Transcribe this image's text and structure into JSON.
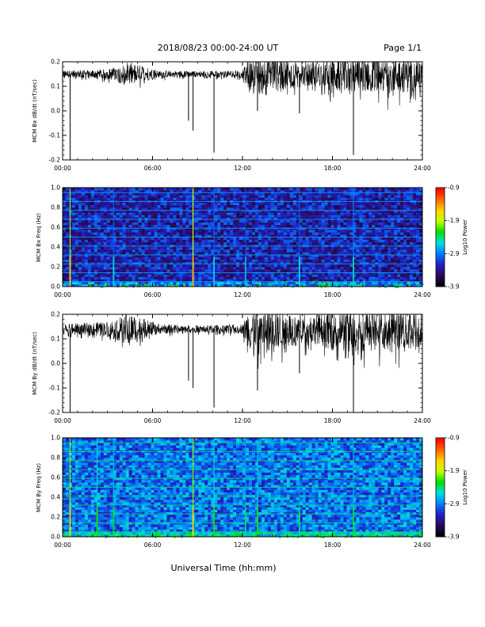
{
  "header": {
    "title": "2018/08/23  00:00-24:00 UT",
    "page": "Page 1/1"
  },
  "xlabel": "Universal Time (hh:mm)",
  "chart_data": [
    {
      "type": "line",
      "ylabel": "MCM Bx dB/dt (nT/sec)",
      "xlim": [
        0,
        24
      ],
      "ylim": [
        -0.2,
        0.2
      ],
      "x_tick_labels": [
        "00:00",
        "06:00",
        "12:00",
        "18:00",
        "24:00"
      ],
      "y_ticks": [
        -0.2,
        -0.1,
        0.0,
        0.1,
        0.2
      ],
      "y_tick_labels": [
        "-0.2",
        "-0.1",
        "0.0",
        "0.1",
        "0.2"
      ],
      "baseline": 0.15,
      "spikes": [
        {
          "x": 0.5,
          "y": -0.2
        },
        {
          "x": 8.4,
          "y": -0.04
        },
        {
          "x": 8.7,
          "y": -0.08
        },
        {
          "x": 10.1,
          "y": -0.17
        },
        {
          "x": 13.0,
          "y": 0.0
        },
        {
          "x": 15.8,
          "y": -0.01
        },
        {
          "x": 19.4,
          "y": -0.18
        }
      ],
      "noise_envelope": [
        {
          "x": 0,
          "amp": 0.015
        },
        {
          "x": 3,
          "amp": 0.02
        },
        {
          "x": 4.5,
          "amp": 0.05
        },
        {
          "x": 5.5,
          "amp": 0.03
        },
        {
          "x": 6.5,
          "amp": 0.015
        },
        {
          "x": 9,
          "amp": 0.012
        },
        {
          "x": 12,
          "amp": 0.015
        },
        {
          "x": 12.5,
          "amp": 0.07
        },
        {
          "x": 13.5,
          "amp": 0.09
        },
        {
          "x": 15,
          "amp": 0.06
        },
        {
          "x": 17,
          "amp": 0.05
        },
        {
          "x": 18.5,
          "amp": 0.08
        },
        {
          "x": 20,
          "amp": 0.07
        },
        {
          "x": 22,
          "amp": 0.08
        },
        {
          "x": 24,
          "amp": 0.07
        }
      ]
    },
    {
      "type": "heatmap",
      "ylabel": "MCM Bx Freq (Hz)",
      "xlim": [
        0,
        24
      ],
      "ylim": [
        0.0,
        1.0
      ],
      "x_tick_labels": [
        "00:00",
        "06:00",
        "12:00",
        "18:00",
        "24:00"
      ],
      "y_ticks": [
        0.0,
        0.2,
        0.4,
        0.6,
        0.8,
        1.0
      ],
      "y_tick_labels": [
        "0.0",
        "0.2",
        "0.4",
        "0.6",
        "0.8",
        "1.0"
      ],
      "colorbar": {
        "label": "Log10 Power",
        "range": [
          -3.9,
          -0.9
        ],
        "tick_labels": [
          "-0.9",
          "-1.9",
          "-2.9",
          "-3.9"
        ]
      },
      "background_level": -3.3,
      "harmonic_lines_hz": [
        0.05,
        0.14,
        0.23,
        0.32,
        0.41,
        0.5,
        0.59,
        0.68,
        0.77,
        0.86,
        0.95
      ],
      "vertical_events": [
        {
          "x": 0.5,
          "level": -1.6
        },
        {
          "x": 3.4,
          "level": -2.6
        },
        {
          "x": 8.7,
          "level": -1.5
        },
        {
          "x": 10.1,
          "level": -2.6
        },
        {
          "x": 12.2,
          "level": -2.7
        },
        {
          "x": 15.8,
          "level": -2.6
        },
        {
          "x": 19.4,
          "level": -2.5
        }
      ]
    },
    {
      "type": "line",
      "ylabel": "MCM By dB/dt (nT/sec)",
      "xlim": [
        0,
        24
      ],
      "ylim": [
        -0.2,
        0.2
      ],
      "x_tick_labels": [
        "00:00",
        "06:00",
        "12:00",
        "18:00",
        "24:00"
      ],
      "y_ticks": [
        -0.2,
        -0.1,
        0.0,
        0.1,
        0.2
      ],
      "y_tick_labels": [
        "-0.2",
        "-0.1",
        "0.0",
        "0.1",
        "0.2"
      ],
      "baseline": 0.14,
      "spikes": [
        {
          "x": 0.5,
          "y": -0.2
        },
        {
          "x": 8.4,
          "y": -0.07
        },
        {
          "x": 8.7,
          "y": -0.1
        },
        {
          "x": 10.1,
          "y": -0.18
        },
        {
          "x": 13.0,
          "y": -0.11
        },
        {
          "x": 15.8,
          "y": -0.04
        },
        {
          "x": 19.4,
          "y": -0.2
        }
      ],
      "noise_envelope": [
        {
          "x": 0,
          "amp": 0.02
        },
        {
          "x": 3,
          "amp": 0.03
        },
        {
          "x": 4.5,
          "amp": 0.07
        },
        {
          "x": 5.5,
          "amp": 0.04
        },
        {
          "x": 6.5,
          "amp": 0.02
        },
        {
          "x": 9,
          "amp": 0.015
        },
        {
          "x": 12,
          "amp": 0.02
        },
        {
          "x": 12.5,
          "amp": 0.09
        },
        {
          "x": 13.5,
          "amp": 0.1
        },
        {
          "x": 15,
          "amp": 0.07
        },
        {
          "x": 17,
          "amp": 0.06
        },
        {
          "x": 18.5,
          "amp": 0.1
        },
        {
          "x": 20,
          "amp": 0.09
        },
        {
          "x": 22,
          "amp": 0.09
        },
        {
          "x": 24,
          "amp": 0.08
        }
      ]
    },
    {
      "type": "heatmap",
      "ylabel": "MCM By Freq (Hz)",
      "xlim": [
        0,
        24
      ],
      "ylim": [
        0.0,
        1.0
      ],
      "x_tick_labels": [
        "00:00",
        "06:00",
        "12:00",
        "18:00",
        "24:00"
      ],
      "y_ticks": [
        0.0,
        0.2,
        0.4,
        0.6,
        0.8,
        1.0
      ],
      "y_tick_labels": [
        "0.0",
        "0.2",
        "0.4",
        "0.6",
        "0.8",
        "1.0"
      ],
      "colorbar": {
        "label": "Log10 Power",
        "range": [
          -3.9,
          -0.9
        ],
        "tick_labels": [
          "-0.9",
          "-1.9",
          "-2.9",
          "-3.9"
        ]
      },
      "background_level": -2.95,
      "harmonic_lines_hz": [
        0.05,
        0.14,
        0.23,
        0.32,
        0.41,
        0.5,
        0.59,
        0.68,
        0.77,
        0.86,
        0.95
      ],
      "vertical_events": [
        {
          "x": 0.5,
          "level": -1.6
        },
        {
          "x": 2.3,
          "level": -2.2
        },
        {
          "x": 3.4,
          "level": -2.3
        },
        {
          "x": 8.7,
          "level": -1.6
        },
        {
          "x": 10.1,
          "level": -2.2
        },
        {
          "x": 12.2,
          "level": -2.4
        },
        {
          "x": 13.0,
          "level": -2.2
        },
        {
          "x": 15.8,
          "level": -2.4
        },
        {
          "x": 19.4,
          "level": -2.3
        }
      ]
    }
  ],
  "colors": {
    "trace": "#000000",
    "colormap": [
      "#000000",
      "#2b0a5a",
      "#2020c8",
      "#0080ff",
      "#00e0e0",
      "#00e000",
      "#c8ff00",
      "#ffd200",
      "#ff6400",
      "#ff0000"
    ]
  }
}
